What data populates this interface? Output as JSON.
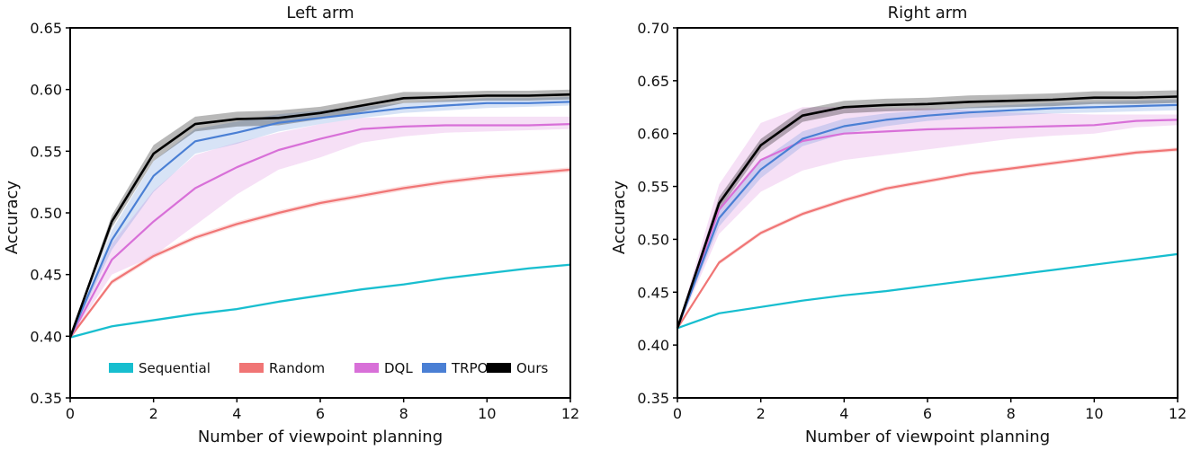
{
  "chart_data": [
    {
      "type": "line",
      "title": "Left arm",
      "xlabel": "Number of viewpoint planning",
      "ylabel": "Accuracy",
      "xlim": [
        0,
        12
      ],
      "ylim": [
        0.35,
        0.65
      ],
      "xticks": [
        0,
        2,
        4,
        6,
        8,
        10,
        12
      ],
      "xtick_labels": [
        "0",
        "2",
        "4",
        "6",
        "8",
        "10",
        "12"
      ],
      "yticks": [
        0.35,
        0.4,
        0.45,
        0.5,
        0.55,
        0.6,
        0.65
      ],
      "ytick_labels": [
        "0.35",
        "0.40",
        "0.45",
        "0.50",
        "0.55",
        "0.60",
        "0.65"
      ],
      "legend": "bottom",
      "x": [
        0,
        1,
        2,
        3,
        4,
        5,
        6,
        7,
        8,
        9,
        10,
        11,
        12
      ],
      "series": [
        {
          "name": "Sequential",
          "color": "#17becf",
          "values": [
            0.399,
            0.408,
            0.413,
            0.418,
            0.422,
            0.428,
            0.433,
            0.438,
            0.442,
            0.447,
            0.451,
            0.455,
            0.458
          ],
          "lower": [
            0.398,
            0.407,
            0.412,
            0.417,
            0.421,
            0.427,
            0.432,
            0.437,
            0.441,
            0.446,
            0.45,
            0.454,
            0.457
          ],
          "upper": [
            0.4,
            0.409,
            0.414,
            0.419,
            0.423,
            0.429,
            0.434,
            0.439,
            0.443,
            0.448,
            0.452,
            0.456,
            0.459
          ]
        },
        {
          "name": "Random",
          "color": "#f07575",
          "values": [
            0.399,
            0.444,
            0.465,
            0.48,
            0.491,
            0.5,
            0.508,
            0.514,
            0.52,
            0.525,
            0.529,
            0.532,
            0.535
          ],
          "lower": [
            0.398,
            0.442,
            0.463,
            0.478,
            0.489,
            0.498,
            0.506,
            0.512,
            0.518,
            0.523,
            0.527,
            0.53,
            0.533
          ],
          "upper": [
            0.4,
            0.446,
            0.467,
            0.482,
            0.493,
            0.502,
            0.51,
            0.516,
            0.522,
            0.527,
            0.531,
            0.534,
            0.537
          ]
        },
        {
          "name": "DQL",
          "color": "#d870d8",
          "values": [
            0.399,
            0.462,
            0.493,
            0.52,
            0.537,
            0.551,
            0.56,
            0.568,
            0.57,
            0.571,
            0.571,
            0.571,
            0.572
          ],
          "lower": [
            0.398,
            0.45,
            0.465,
            0.49,
            0.515,
            0.535,
            0.545,
            0.557,
            0.562,
            0.565,
            0.566,
            0.567,
            0.568
          ],
          "upper": [
            0.4,
            0.475,
            0.518,
            0.547,
            0.557,
            0.565,
            0.572,
            0.577,
            0.578,
            0.578,
            0.578,
            0.578,
            0.578
          ]
        },
        {
          "name": "TRPO",
          "color": "#4a7fd4",
          "values": [
            0.399,
            0.478,
            0.53,
            0.558,
            0.565,
            0.573,
            0.577,
            0.581,
            0.585,
            0.587,
            0.589,
            0.589,
            0.59
          ],
          "lower": [
            0.398,
            0.47,
            0.517,
            0.548,
            0.556,
            0.566,
            0.572,
            0.577,
            0.581,
            0.583,
            0.585,
            0.586,
            0.587
          ],
          "upper": [
            0.4,
            0.486,
            0.542,
            0.568,
            0.574,
            0.58,
            0.583,
            0.586,
            0.589,
            0.591,
            0.593,
            0.593,
            0.594
          ]
        },
        {
          "name": "Ours",
          "color": "#000000",
          "values": [
            0.399,
            0.493,
            0.548,
            0.572,
            0.576,
            0.577,
            0.581,
            0.587,
            0.593,
            0.594,
            0.595,
            0.595,
            0.596
          ],
          "lower": [
            0.398,
            0.488,
            0.542,
            0.566,
            0.57,
            0.571,
            0.576,
            0.582,
            0.589,
            0.59,
            0.591,
            0.591,
            0.592
          ],
          "upper": [
            0.4,
            0.498,
            0.555,
            0.578,
            0.582,
            0.583,
            0.586,
            0.592,
            0.598,
            0.598,
            0.599,
            0.599,
            0.6
          ]
        }
      ]
    },
    {
      "type": "line",
      "title": "Right arm",
      "xlabel": "Number of viewpoint planning",
      "ylabel": "Accuracy",
      "xlim": [
        0,
        12
      ],
      "ylim": [
        0.35,
        0.7
      ],
      "xticks": [
        0,
        2,
        4,
        6,
        8,
        10,
        12
      ],
      "xtick_labels": [
        "0",
        "2",
        "4",
        "6",
        "8",
        "10",
        "12"
      ],
      "yticks": [
        0.35,
        0.4,
        0.45,
        0.5,
        0.55,
        0.6,
        0.65,
        0.7
      ],
      "ytick_labels": [
        "0.35",
        "0.40",
        "0.45",
        "0.50",
        "0.55",
        "0.60",
        "0.65",
        "0.70"
      ],
      "legend": "none",
      "x": [
        0,
        1,
        2,
        3,
        4,
        5,
        6,
        7,
        8,
        9,
        10,
        11,
        12
      ],
      "series": [
        {
          "name": "Sequential",
          "color": "#17becf",
          "values": [
            0.416,
            0.43,
            0.436,
            0.442,
            0.447,
            0.451,
            0.456,
            0.461,
            0.466,
            0.471,
            0.476,
            0.481,
            0.486
          ],
          "lower": [
            0.415,
            0.429,
            0.435,
            0.441,
            0.446,
            0.45,
            0.455,
            0.46,
            0.465,
            0.47,
            0.475,
            0.48,
            0.485
          ],
          "upper": [
            0.417,
            0.431,
            0.437,
            0.443,
            0.448,
            0.452,
            0.457,
            0.462,
            0.467,
            0.472,
            0.477,
            0.482,
            0.487
          ]
        },
        {
          "name": "Random",
          "color": "#f07575",
          "values": [
            0.416,
            0.478,
            0.506,
            0.524,
            0.537,
            0.548,
            0.555,
            0.562,
            0.567,
            0.572,
            0.577,
            0.582,
            0.585
          ],
          "lower": [
            0.415,
            0.476,
            0.504,
            0.522,
            0.535,
            0.546,
            0.553,
            0.56,
            0.565,
            0.57,
            0.575,
            0.58,
            0.583
          ],
          "upper": [
            0.417,
            0.48,
            0.508,
            0.526,
            0.539,
            0.55,
            0.557,
            0.564,
            0.569,
            0.574,
            0.579,
            0.584,
            0.587
          ]
        },
        {
          "name": "DQL",
          "color": "#d870d8",
          "values": [
            0.416,
            0.528,
            0.575,
            0.593,
            0.6,
            0.602,
            0.604,
            0.605,
            0.606,
            0.607,
            0.608,
            0.612,
            0.613
          ],
          "lower": [
            0.415,
            0.505,
            0.545,
            0.565,
            0.575,
            0.58,
            0.585,
            0.59,
            0.595,
            0.598,
            0.6,
            0.606,
            0.608
          ],
          "upper": [
            0.417,
            0.552,
            0.61,
            0.625,
            0.625,
            0.624,
            0.624,
            0.622,
            0.62,
            0.619,
            0.618,
            0.618,
            0.618
          ]
        },
        {
          "name": "TRPO",
          "color": "#4a7fd4",
          "values": [
            0.416,
            0.52,
            0.566,
            0.595,
            0.607,
            0.613,
            0.617,
            0.62,
            0.622,
            0.624,
            0.625,
            0.626,
            0.627
          ],
          "lower": [
            0.415,
            0.512,
            0.558,
            0.588,
            0.6,
            0.607,
            0.612,
            0.615,
            0.617,
            0.619,
            0.62,
            0.621,
            0.622
          ],
          "upper": [
            0.417,
            0.528,
            0.574,
            0.602,
            0.614,
            0.619,
            0.622,
            0.625,
            0.627,
            0.629,
            0.63,
            0.631,
            0.632
          ]
        },
        {
          "name": "Ours",
          "color": "#000000",
          "values": [
            0.416,
            0.534,
            0.589,
            0.617,
            0.625,
            0.627,
            0.628,
            0.63,
            0.631,
            0.632,
            0.634,
            0.634,
            0.635
          ],
          "lower": [
            0.415,
            0.528,
            0.583,
            0.611,
            0.619,
            0.621,
            0.622,
            0.624,
            0.625,
            0.626,
            0.628,
            0.628,
            0.629
          ],
          "upper": [
            0.417,
            0.54,
            0.595,
            0.623,
            0.631,
            0.633,
            0.634,
            0.636,
            0.637,
            0.638,
            0.64,
            0.64,
            0.641
          ]
        }
      ]
    }
  ]
}
